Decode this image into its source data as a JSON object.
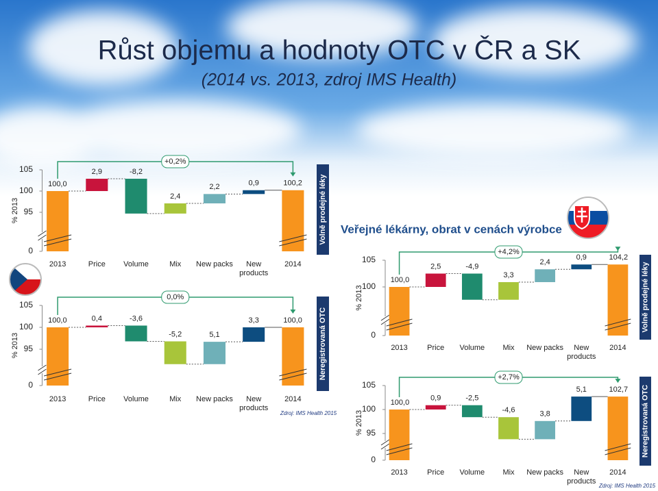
{
  "title": "Růst objemu a hodnoty OTC v ČR a SK",
  "subtitle": "(2014 vs. 2013, zdroj IMS Health)",
  "chart_data": [
    {
      "type": "waterfall",
      "ylabel": "% 2013",
      "side_label": "Volně prodejné léky",
      "annotation": "+0,2%",
      "categories": [
        "2013",
        "Price",
        "Volume",
        "Mix",
        "New packs",
        "New products",
        "2014"
      ],
      "values": [
        100.0,
        2.9,
        -8.2,
        2.4,
        2.2,
        0.9,
        100.2
      ],
      "value_labels": [
        "100,0",
        "2,9",
        "-8,2",
        "2,4",
        "2,2",
        "0,9",
        "100,2"
      ],
      "colors": [
        "#f7941d",
        "#c8143c",
        "#1f8b6e",
        "#a8c53a",
        "#6fb0b8",
        "#0d4d80",
        "#f7941d"
      ],
      "ylim": [
        0,
        105
      ],
      "yticks": [
        0,
        95,
        100,
        105
      ]
    },
    {
      "type": "waterfall",
      "ylabel": "% 2013",
      "side_label": "Neregistrovaná OTC",
      "annotation": "0,0%",
      "source": "Zdroj: IMS Health 2015",
      "categories": [
        "2013",
        "Price",
        "Volume",
        "Mix",
        "New packs",
        "New products",
        "2014"
      ],
      "values": [
        100.0,
        0.4,
        -3.6,
        -5.2,
        5.1,
        3.3,
        100.0
      ],
      "value_labels": [
        "100,0",
        "0,4",
        "-3,6",
        "-5,2",
        "5,1",
        "3,3",
        "100,0"
      ],
      "colors": [
        "#f7941d",
        "#c8143c",
        "#1f8b6e",
        "#a8c53a",
        "#6fb0b8",
        "#0d4d80",
        "#f7941d"
      ],
      "ylim": [
        0,
        105
      ],
      "yticks": [
        0,
        95,
        100,
        105
      ]
    },
    {
      "type": "waterfall",
      "subtitle": "Veřejné lékárny, obrat v cenách výrobce",
      "ylabel": "% 2013",
      "side_label": "Volně prodejné léky",
      "annotation": "+4,2%",
      "categories": [
        "2013",
        "Price",
        "Volume",
        "Mix",
        "New packs",
        "New products",
        "2014"
      ],
      "values": [
        100.0,
        2.5,
        -4.9,
        3.3,
        2.4,
        0.9,
        104.2
      ],
      "value_labels": [
        "100,0",
        "2,5",
        "-4,9",
        "3,3",
        "2,4",
        "0,9",
        "104,2"
      ],
      "colors": [
        "#f7941d",
        "#c8143c",
        "#1f8b6e",
        "#a8c53a",
        "#6fb0b8",
        "#0d4d80",
        "#f7941d"
      ],
      "ylim": [
        0,
        105
      ],
      "yticks": [
        0,
        100,
        105
      ]
    },
    {
      "type": "waterfall",
      "ylabel": "% 2013",
      "side_label": "Neregistrovaná OTC",
      "annotation": "+2,7%",
      "source": "Zdroj: IMS Health 2015",
      "categories": [
        "2013",
        "Price",
        "Volume",
        "Mix",
        "New packs",
        "New products",
        "2014"
      ],
      "values": [
        100.0,
        0.9,
        -2.5,
        -4.6,
        3.8,
        5.1,
        102.7
      ],
      "value_labels": [
        "100,0",
        "0,9",
        "-2,5",
        "-4,6",
        "3,8",
        "5,1",
        "102,7"
      ],
      "colors": [
        "#f7941d",
        "#c8143c",
        "#1f8b6e",
        "#a8c53a",
        "#6fb0b8",
        "#0d4d80",
        "#f7941d"
      ],
      "ylim": [
        0,
        105
      ],
      "yticks": [
        0,
        95,
        100,
        105
      ]
    }
  ]
}
